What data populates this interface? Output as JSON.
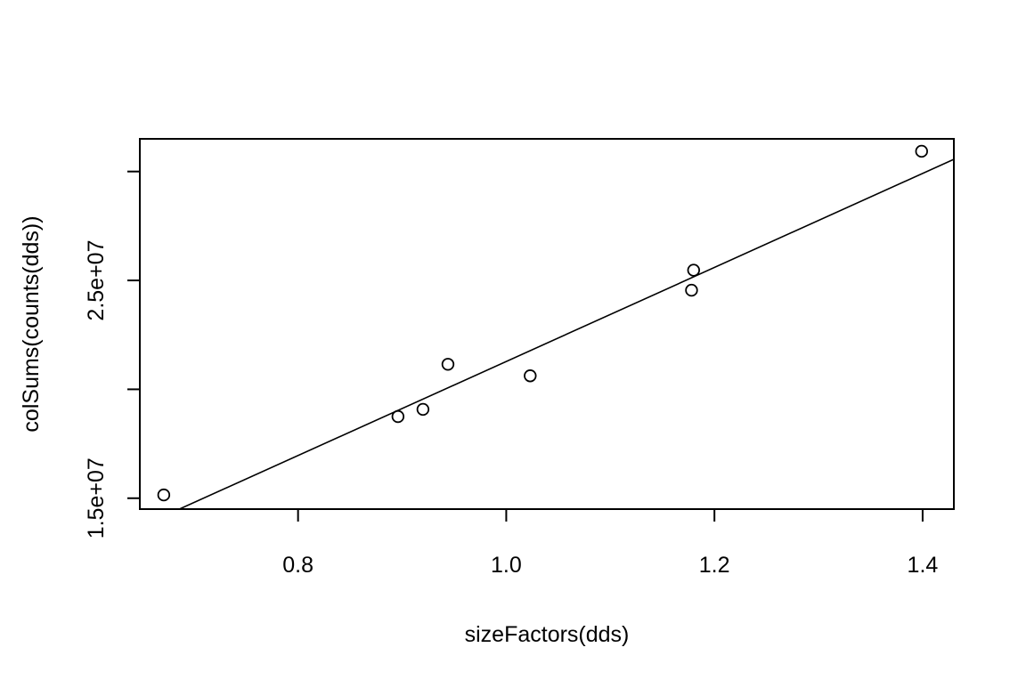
{
  "chart_data": {
    "type": "scatter",
    "title": "",
    "xlabel": "sizeFactors(dds)",
    "ylabel": "colSums(counts(dds))",
    "xlim": [
      0.648,
      1.43
    ],
    "ylim": [
      14500000,
      31500000
    ],
    "x_ticks": [
      {
        "value": 0.8,
        "label": "0.8"
      },
      {
        "value": 1.0,
        "label": "1.0"
      },
      {
        "value": 1.2,
        "label": "1.2"
      },
      {
        "value": 1.4,
        "label": "1.4"
      }
    ],
    "y_ticks": [
      {
        "value": 15000000,
        "label": "1.5e+07"
      },
      {
        "value": 20000000,
        "label": ""
      },
      {
        "value": 25000000,
        "label": "2.5e+07"
      },
      {
        "value": 30000000,
        "label": ""
      }
    ],
    "points": [
      {
        "x": 0.671,
        "y": 15150000
      },
      {
        "x": 0.896,
        "y": 18750000
      },
      {
        "x": 0.92,
        "y": 19080000
      },
      {
        "x": 0.944,
        "y": 21150000
      },
      {
        "x": 1.023,
        "y": 20620000
      },
      {
        "x": 1.178,
        "y": 24550000
      },
      {
        "x": 1.18,
        "y": 25470000
      },
      {
        "x": 1.399,
        "y": 30930000
      }
    ],
    "fit_line": {
      "x": [
        0.686,
        1.43
      ],
      "y": [
        14500000,
        30560000
      ]
    },
    "grid": false,
    "legend": "none",
    "colors": {
      "point_stroke": "#000000",
      "line": "#000000",
      "background": "#ffffff"
    }
  }
}
